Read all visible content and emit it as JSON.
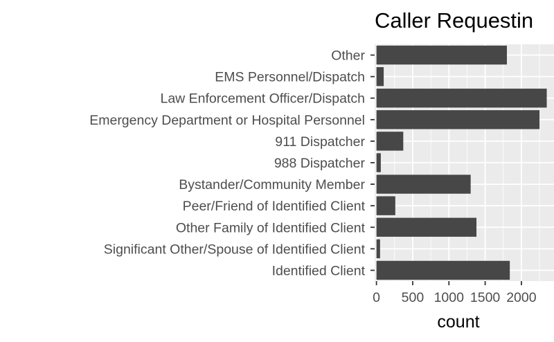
{
  "chart_data": {
    "type": "bar",
    "orientation": "horizontal",
    "title": "Caller Requestin",
    "xlabel": "count",
    "ylabel": "",
    "categories": [
      "Identified Client",
      "Significant Other/Spouse of Identified Client",
      "Other Family of Identified Client",
      "Peer/Friend of Identified Client",
      "Bystander/Community Member",
      "988 Dispatcher",
      "911 Dispatcher",
      "Emergency Department or Hospital Personnel",
      "Law Enforcement Officer/Dispatch",
      "EMS Personnel/Dispatch",
      "Other"
    ],
    "values": [
      1840,
      50,
      1380,
      260,
      1300,
      60,
      370,
      2250,
      2350,
      100,
      1800
    ],
    "xlim": [
      -25,
      2450
    ],
    "xticks": [
      0,
      500,
      1000,
      1500,
      2000
    ],
    "xtick_labels": [
      "0",
      "500",
      "1000",
      "1500",
      "2000"
    ],
    "grid": true,
    "legend": "none",
    "colors": {
      "bar": "#474747",
      "panel": "#ebebeb",
      "grid": "#ffffff",
      "text": "#4d4d4d"
    }
  }
}
